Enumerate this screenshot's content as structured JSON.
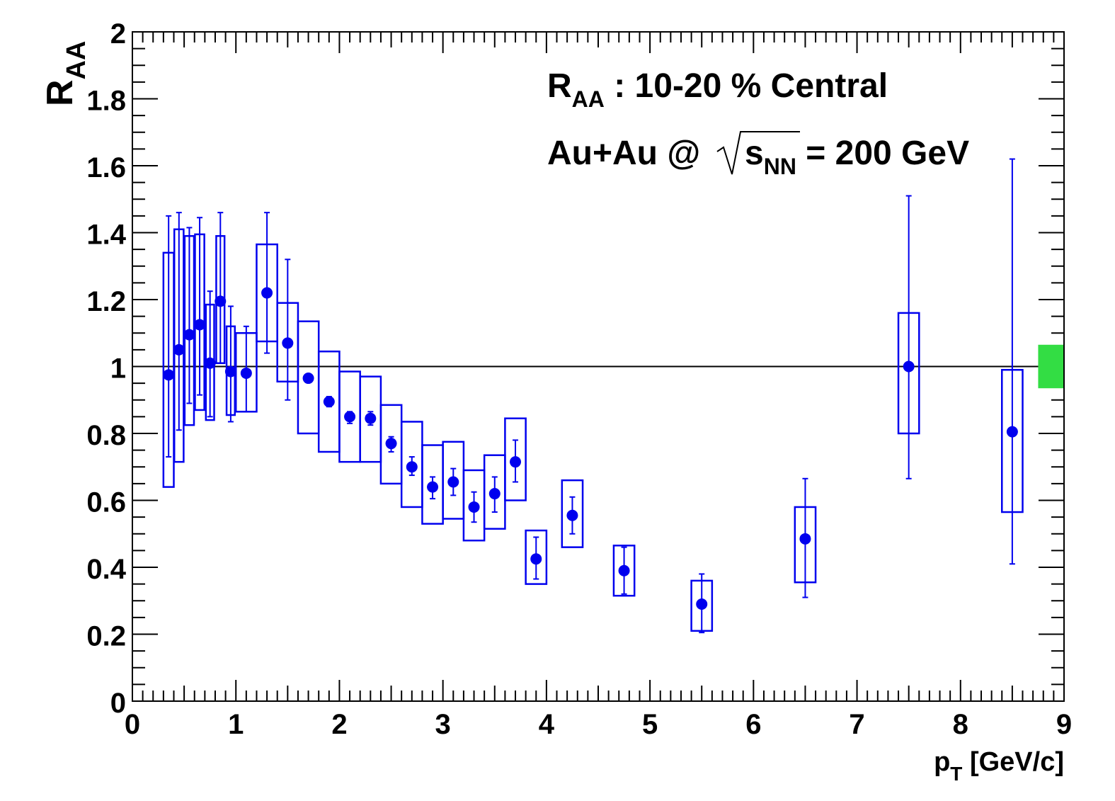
{
  "chart_data": {
    "type": "scatter",
    "xlabel_main": "p",
    "xlabel_sub": "T",
    "xlabel_unit": " [GeV/c]",
    "ylabel_main": "R",
    "ylabel_sub": "AA",
    "annotation1_main": "R",
    "annotation1_sub": "AA",
    "annotation1_rest": " : 10-20 % Central",
    "annotation2_prefix": "Au+Au @",
    "annotation2_s": "s",
    "annotation2_sub": "NN",
    "annotation2_rest": " = 200 GeV",
    "xlim": [
      0,
      9
    ],
    "ylim": [
      0,
      2
    ],
    "x_ticks": [
      "0",
      "1",
      "2",
      "3",
      "4",
      "5",
      "6",
      "7",
      "8",
      "9"
    ],
    "y_ticks": [
      "0",
      "0.2",
      "0.4",
      "0.6",
      "0.8",
      "1",
      "1.2",
      "1.4",
      "1.6",
      "1.8",
      "2"
    ],
    "reference_line": 1,
    "normalization_box": {
      "x": [
        8.75,
        9.0
      ],
      "y": [
        0.935,
        1.065
      ],
      "color": "#33dd44"
    },
    "marker_color": "#0000ee",
    "points": [
      {
        "x": 0.35,
        "y": 0.975,
        "err_low": 0.73,
        "err_high": 1.45,
        "sys_low": 0.64,
        "sys_high": 1.34,
        "half_width": 0.05
      },
      {
        "x": 0.45,
        "y": 1.05,
        "err_low": 0.81,
        "err_high": 1.46,
        "sys_low": 0.715,
        "sys_high": 1.41,
        "half_width": 0.045
      },
      {
        "x": 0.55,
        "y": 1.095,
        "err_low": 0.89,
        "err_high": 1.415,
        "sys_low": 0.825,
        "sys_high": 1.39,
        "half_width": 0.045
      },
      {
        "x": 0.65,
        "y": 1.125,
        "err_low": 0.915,
        "err_high": 1.445,
        "sys_low": 0.87,
        "sys_high": 1.395,
        "half_width": 0.045
      },
      {
        "x": 0.75,
        "y": 1.01,
        "err_low": 0.85,
        "err_high": 1.225,
        "sys_low": 0.84,
        "sys_high": 1.185,
        "half_width": 0.04
      },
      {
        "x": 0.85,
        "y": 1.195,
        "err_low": 1.01,
        "err_high": 1.46,
        "sys_low": 1.01,
        "sys_high": 1.39,
        "half_width": 0.04
      },
      {
        "x": 0.95,
        "y": 0.985,
        "err_low": 0.835,
        "err_high": 1.18,
        "sys_low": 0.855,
        "sys_high": 1.12,
        "half_width": 0.04
      },
      {
        "x": 1.1,
        "y": 0.98,
        "err_low": 0.865,
        "err_high": 1.12,
        "sys_low": 0.865,
        "sys_high": 1.1,
        "half_width": 0.1
      },
      {
        "x": 1.3,
        "y": 1.22,
        "err_low": 1.04,
        "err_high": 1.46,
        "sys_low": 1.075,
        "sys_high": 1.365,
        "half_width": 0.1
      },
      {
        "x": 1.5,
        "y": 1.07,
        "err_low": 0.9,
        "err_high": 1.32,
        "sys_low": 0.955,
        "sys_high": 1.19,
        "half_width": 0.1
      },
      {
        "x": 1.7,
        "y": 0.965,
        "err_low": 0.955,
        "err_high": 0.975,
        "sys_low": 0.8,
        "sys_high": 1.135,
        "half_width": 0.1
      },
      {
        "x": 1.9,
        "y": 0.895,
        "err_low": 0.88,
        "err_high": 0.91,
        "sys_low": 0.745,
        "sys_high": 1.045,
        "half_width": 0.1
      },
      {
        "x": 2.1,
        "y": 0.85,
        "err_low": 0.83,
        "err_high": 0.865,
        "sys_low": 0.715,
        "sys_high": 0.985,
        "half_width": 0.1
      },
      {
        "x": 2.3,
        "y": 0.845,
        "err_low": 0.825,
        "err_high": 0.865,
        "sys_low": 0.715,
        "sys_high": 0.97,
        "half_width": 0.1
      },
      {
        "x": 2.5,
        "y": 0.77,
        "err_low": 0.745,
        "err_high": 0.79,
        "sys_low": 0.65,
        "sys_high": 0.885,
        "half_width": 0.1
      },
      {
        "x": 2.7,
        "y": 0.7,
        "err_low": 0.675,
        "err_high": 0.73,
        "sys_low": 0.58,
        "sys_high": 0.835,
        "half_width": 0.1
      },
      {
        "x": 2.9,
        "y": 0.64,
        "err_low": 0.605,
        "err_high": 0.67,
        "sys_low": 0.53,
        "sys_high": 0.765,
        "half_width": 0.1
      },
      {
        "x": 3.1,
        "y": 0.655,
        "err_low": 0.615,
        "err_high": 0.695,
        "sys_low": 0.545,
        "sys_high": 0.775,
        "half_width": 0.1
      },
      {
        "x": 3.3,
        "y": 0.58,
        "err_low": 0.535,
        "err_high": 0.625,
        "sys_low": 0.48,
        "sys_high": 0.69,
        "half_width": 0.1
      },
      {
        "x": 3.5,
        "y": 0.62,
        "err_low": 0.565,
        "err_high": 0.67,
        "sys_low": 0.515,
        "sys_high": 0.735,
        "half_width": 0.1
      },
      {
        "x": 3.7,
        "y": 0.715,
        "err_low": 0.655,
        "err_high": 0.78,
        "sys_low": 0.6,
        "sys_high": 0.845,
        "half_width": 0.1
      },
      {
        "x": 3.9,
        "y": 0.425,
        "err_low": 0.365,
        "err_high": 0.49,
        "sys_low": 0.35,
        "sys_high": 0.51,
        "half_width": 0.1
      },
      {
        "x": 4.25,
        "y": 0.555,
        "err_low": 0.5,
        "err_high": 0.61,
        "sys_low": 0.46,
        "sys_high": 0.66,
        "half_width": 0.1
      },
      {
        "x": 4.75,
        "y": 0.39,
        "err_low": 0.32,
        "err_high": 0.46,
        "sys_low": 0.315,
        "sys_high": 0.465,
        "half_width": 0.1
      },
      {
        "x": 5.5,
        "y": 0.29,
        "err_low": 0.205,
        "err_high": 0.38,
        "sys_low": 0.21,
        "sys_high": 0.36,
        "half_width": 0.1
      },
      {
        "x": 6.5,
        "y": 0.485,
        "err_low": 0.31,
        "err_high": 0.665,
        "sys_low": 0.355,
        "sys_high": 0.58,
        "half_width": 0.1
      },
      {
        "x": 7.5,
        "y": 1.0,
        "err_low": 0.665,
        "err_high": 1.51,
        "sys_low": 0.8,
        "sys_high": 1.16,
        "half_width": 0.1
      },
      {
        "x": 8.5,
        "y": 0.805,
        "err_low": 0.41,
        "err_high": 1.62,
        "sys_low": 0.565,
        "sys_high": 0.99,
        "half_width": 0.1
      }
    ]
  }
}
